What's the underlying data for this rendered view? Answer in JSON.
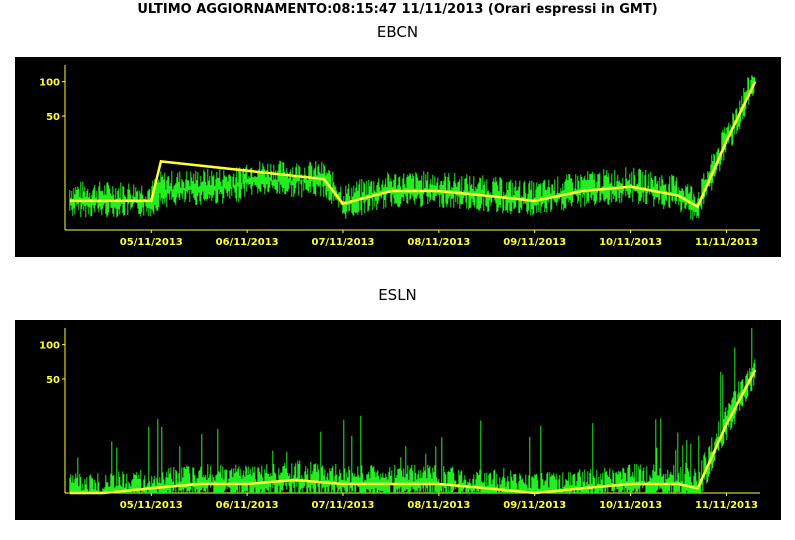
{
  "header": {
    "title": "ULTIMO AGGIORNAMENTO:08:15:47 11/11/2013 (Orari espressi in GMT)"
  },
  "chart_data": [
    {
      "type": "line",
      "title": "EBCN",
      "x_tick_labels": [
        "05/11/2013",
        "06/11/2013",
        "07/11/2013",
        "08/11/2013",
        "09/11/2013",
        "10/11/2013",
        "11/11/2013"
      ],
      "y_tick_labels": [
        "100",
        "50"
      ],
      "y_scale": "log",
      "colors": {
        "raw": "#22ee22",
        "smoothed": "#ffff33",
        "axes": "#ffff33"
      },
      "series": [
        {
          "x": [
            4.15,
            4.5,
            5.0,
            5.1,
            5.5,
            5.9,
            6.0,
            6.5,
            6.8,
            7.0,
            7.5,
            8.0,
            8.5,
            9.0,
            9.5,
            10.0,
            10.5,
            10.7,
            11.0,
            11.3
          ],
          "y": [
            9,
            9,
            9,
            11,
            11.5,
            12,
            14,
            13.5,
            13.5,
            8.5,
            11,
            11,
            10,
            9,
            11,
            12,
            10,
            8,
            30,
            100
          ]
        },
        {
          "x": [
            4.15,
            4.5,
            5.0,
            5.1,
            6.8,
            7.0,
            7.5,
            8.0,
            8.5,
            9.0,
            9.5,
            10.0,
            10.5,
            10.7,
            11.0,
            11.3
          ],
          "y": [
            9,
            9,
            9,
            20,
            14,
            8.5,
            11,
            11,
            10,
            9,
            11,
            12,
            10,
            8,
            30,
            100
          ]
        }
      ]
    },
    {
      "type": "line",
      "title": "ESLN",
      "x_tick_labels": [
        "05/11/2013",
        "06/11/2013",
        "07/11/2013",
        "08/11/2013",
        "09/11/2013",
        "10/11/2013",
        "11/11/2013"
      ],
      "y_tick_labels": [
        "100",
        "50"
      ],
      "y_scale": "log",
      "colors": {
        "raw": "#22ee22",
        "smoothed": "#ffff33",
        "axes": "#ffff33"
      },
      "series": [
        {
          "x": [
            4.15,
            4.5,
            5.0,
            5.5,
            6.0,
            6.5,
            7.0,
            7.5,
            8.0,
            8.5,
            9.0,
            9.5,
            10.0,
            10.5,
            10.7,
            11.0,
            11.3
          ],
          "y": [
            5,
            5,
            5.5,
            6,
            6,
            6.5,
            6,
            6,
            6,
            5.5,
            5,
            5.5,
            6,
            6,
            5.5,
            20,
            60
          ]
        },
        {
          "x": [
            4.15,
            4.5,
            5.0,
            5.5,
            6.0,
            6.5,
            7.0,
            7.5,
            8.0,
            8.5,
            9.0,
            9.5,
            10.0,
            10.5,
            10.7,
            11.0,
            11.3
          ],
          "y": [
            5,
            5,
            5.5,
            6,
            6,
            6.5,
            6,
            6,
            6,
            5.5,
            5,
            5.5,
            6,
            6,
            5.5,
            20,
            60
          ]
        }
      ]
    }
  ]
}
